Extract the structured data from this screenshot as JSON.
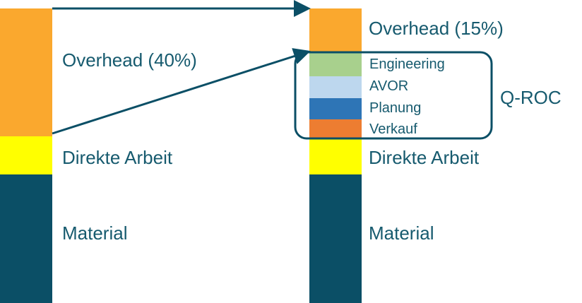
{
  "colors": {
    "overhead": "#faa82e",
    "direct_labor": "#ffff00",
    "material": "#0b4f66",
    "engineering": "#a8d08d",
    "avor": "#bdd7ee",
    "planung": "#2e75b6",
    "verkauf": "#ed7d31",
    "text": "#165a6e",
    "arrow": "#0b4f66"
  },
  "left_bar": {
    "overhead_label": "Overhead (40%)",
    "direct_labor_label": "Direkte Arbeit",
    "material_label": "Material"
  },
  "right_bar": {
    "overhead_label": "Overhead (15%)",
    "engineering_label": "Engineering",
    "avor_label": "AVOR",
    "planung_label": "Planung",
    "verkauf_label": "Verkauf",
    "direct_labor_label": "Direkte Arbeit",
    "material_label": "Material"
  },
  "group_label": "Q-ROC"
}
